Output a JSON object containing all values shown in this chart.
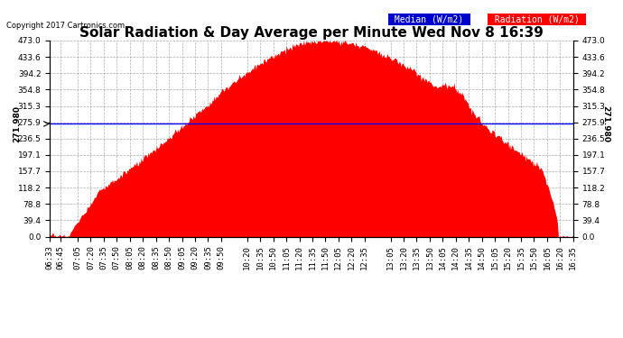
{
  "title": "Solar Radiation & Day Average per Minute Wed Nov 8 16:39",
  "copyright": "Copyright 2017 Cartronics.com",
  "median_value": 271.98,
  "y_max": 473.0,
  "y_min": 0.0,
  "y_ticks": [
    0.0,
    39.4,
    78.8,
    118.2,
    157.7,
    197.1,
    236.5,
    275.9,
    315.3,
    354.8,
    394.2,
    433.6,
    473.0
  ],
  "area_color": "#FF0000",
  "line_color": "#0000FF",
  "bg_color": "#FFFFFF",
  "grid_color": "#999999",
  "legend_median_bg": "#0000CC",
  "legend_radiation_bg": "#FF0000",
  "x_tick_labels": [
    "06:33",
    "06:45",
    "07:05",
    "07:20",
    "07:35",
    "07:50",
    "08:05",
    "08:20",
    "08:35",
    "08:50",
    "09:05",
    "09:20",
    "09:35",
    "09:50",
    "10:20",
    "10:35",
    "10:50",
    "11:05",
    "11:20",
    "11:35",
    "11:50",
    "12:05",
    "12:20",
    "12:35",
    "13:05",
    "13:20",
    "13:35",
    "13:50",
    "14:05",
    "14:20",
    "14:35",
    "14:50",
    "15:05",
    "15:20",
    "15:35",
    "15:50",
    "16:05",
    "16:20",
    "16:35"
  ],
  "title_fontsize": 11,
  "tick_fontsize": 6.5,
  "copyright_fontsize": 6,
  "legend_fontsize": 7
}
